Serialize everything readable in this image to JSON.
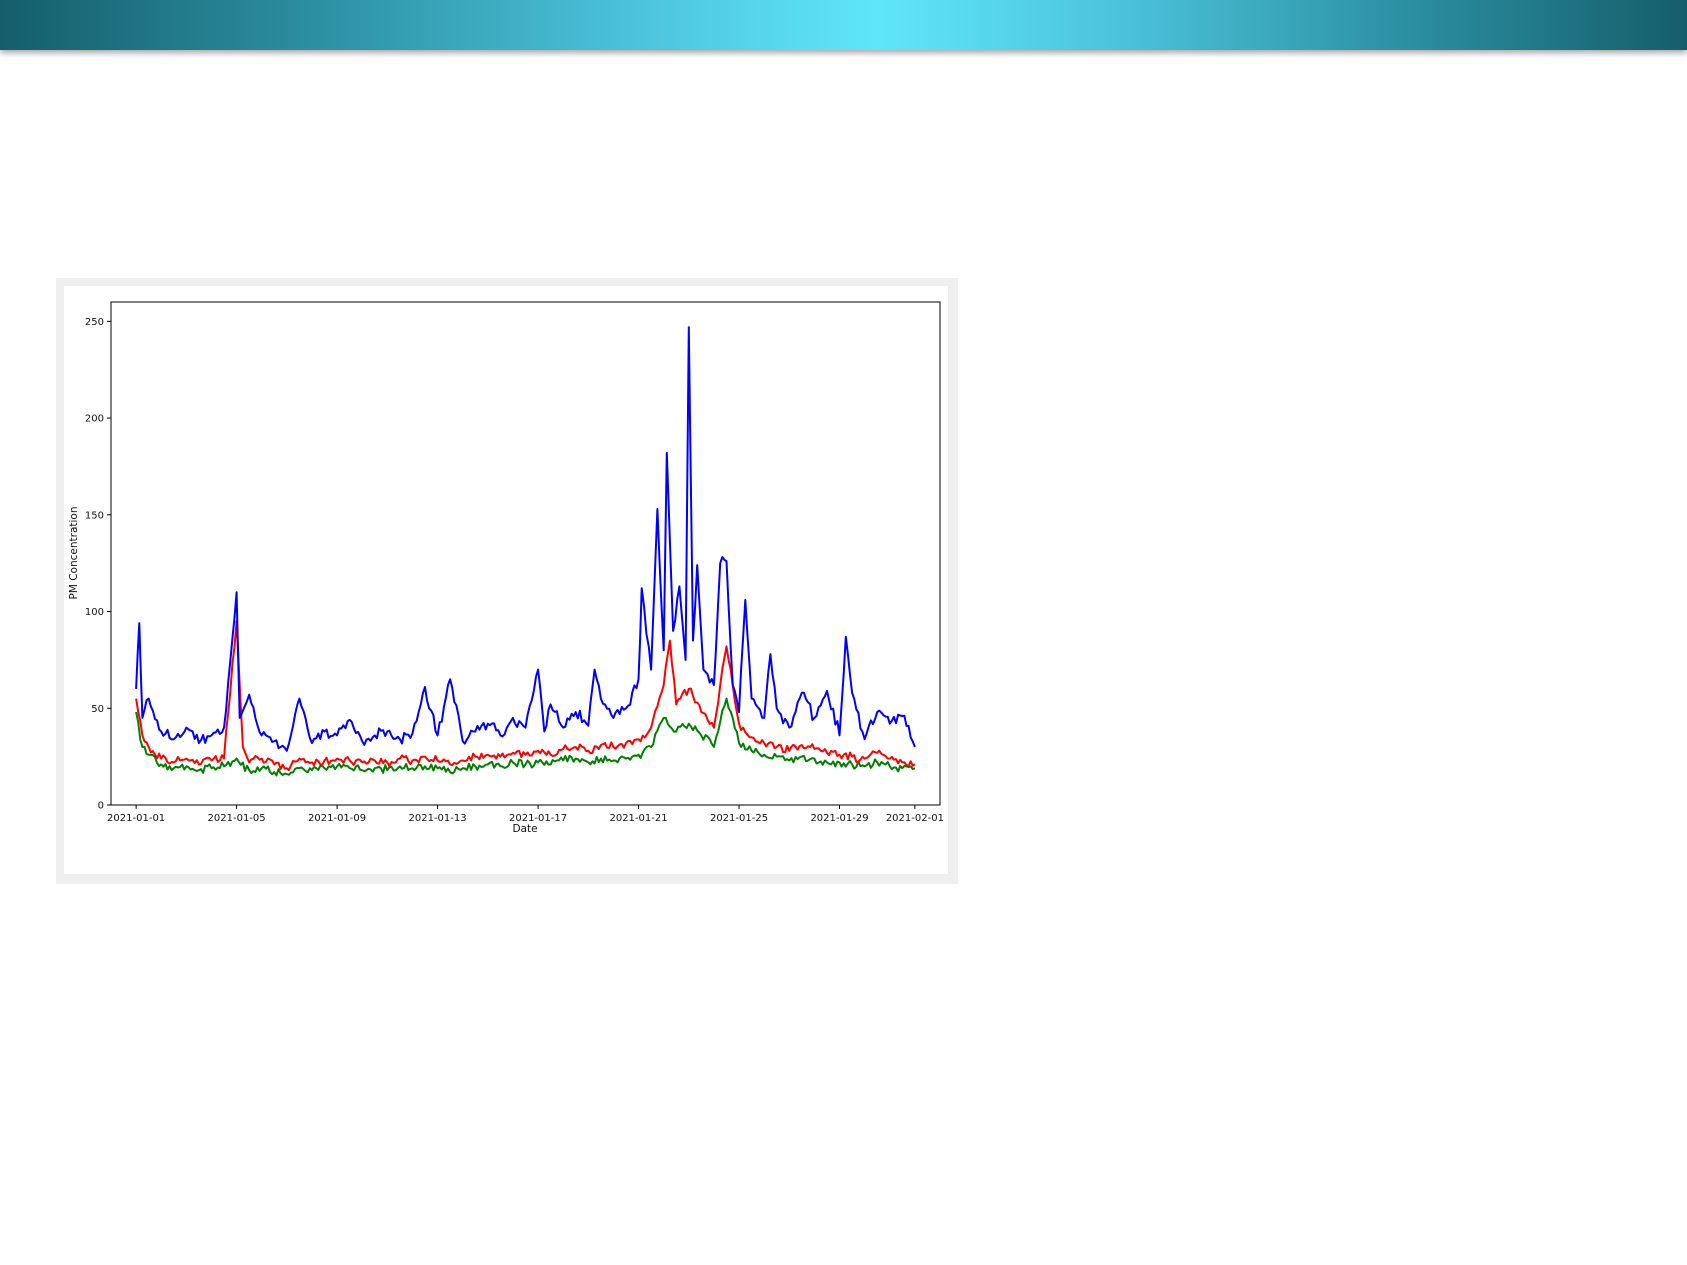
{
  "banner": {
    "colors": [
      "#155e6b",
      "#5fe6fb"
    ]
  },
  "chart_data": {
    "type": "line",
    "title": "",
    "xlabel": "Date",
    "ylabel": "PM Concentration",
    "x_range": [
      "2020-12-31T00:00",
      "2021-02-02T00:00"
    ],
    "ylim": [
      0,
      260
    ],
    "y_ticks": [
      0,
      50,
      100,
      150,
      200,
      250
    ],
    "x_ticks": [
      "2021-01-01",
      "2021-01-05",
      "2021-01-09",
      "2021-01-13",
      "2021-01-17",
      "2021-01-21",
      "2021-01-25",
      "2021-01-29",
      "2021-02-01"
    ],
    "grid": false,
    "legend": "none",
    "series": [
      {
        "color": "#008000",
        "points": [
          [
            "2021-01-01T00:00",
            48
          ],
          [
            "2021-01-01T06:00",
            30
          ],
          [
            "2021-01-01T12:00",
            26
          ],
          [
            "2021-01-02T00:00",
            21
          ],
          [
            "2021-01-02T12:00",
            19
          ],
          [
            "2021-01-03T00:00",
            20
          ],
          [
            "2021-01-03T12:00",
            18
          ],
          [
            "2021-01-04T00:00",
            19
          ],
          [
            "2021-01-04T12:00",
            20
          ],
          [
            "2021-01-05T00:00",
            24
          ],
          [
            "2021-01-05T12:00",
            18
          ],
          [
            "2021-01-06T00:00",
            19
          ],
          [
            "2021-01-06T12:00",
            17
          ],
          [
            "2021-01-07T00:00",
            16
          ],
          [
            "2021-01-07T12:00",
            19
          ],
          [
            "2021-01-08T00:00",
            18
          ],
          [
            "2021-01-08T12:00",
            19
          ],
          [
            "2021-01-09T00:00",
            20
          ],
          [
            "2021-01-09T12:00",
            19
          ],
          [
            "2021-01-10T00:00",
            18
          ],
          [
            "2021-01-10T12:00",
            19
          ],
          [
            "2021-01-11T00:00",
            18
          ],
          [
            "2021-01-11T12:00",
            20
          ],
          [
            "2021-01-12T00:00",
            19
          ],
          [
            "2021-01-12T12:00",
            20
          ],
          [
            "2021-01-13T00:00",
            19
          ],
          [
            "2021-01-13T12:00",
            17
          ],
          [
            "2021-01-14T00:00",
            19
          ],
          [
            "2021-01-14T12:00",
            20
          ],
          [
            "2021-01-15T00:00",
            21
          ],
          [
            "2021-01-15T12:00",
            20
          ],
          [
            "2021-01-16T00:00",
            22
          ],
          [
            "2021-01-16T12:00",
            21
          ],
          [
            "2021-01-17T00:00",
            22
          ],
          [
            "2021-01-17T12:00",
            21
          ],
          [
            "2021-01-18T00:00",
            23
          ],
          [
            "2021-01-18T12:00",
            24
          ],
          [
            "2021-01-19T00:00",
            22
          ],
          [
            "2021-01-19T12:00",
            24
          ],
          [
            "2021-01-20T00:00",
            23
          ],
          [
            "2021-01-20T12:00",
            24
          ],
          [
            "2021-01-21T00:00",
            26
          ],
          [
            "2021-01-21T12:00",
            30
          ],
          [
            "2021-01-22T00:00",
            45
          ],
          [
            "2021-01-22T12:00",
            38
          ],
          [
            "2021-01-23T00:00",
            42
          ],
          [
            "2021-01-23T12:00",
            36
          ],
          [
            "2021-01-24T00:00",
            30
          ],
          [
            "2021-01-24T12:00",
            55
          ],
          [
            "2021-01-25T00:00",
            32
          ],
          [
            "2021-01-25T12:00",
            28
          ],
          [
            "2021-01-26T00:00",
            26
          ],
          [
            "2021-01-26T12:00",
            25
          ],
          [
            "2021-01-27T00:00",
            23
          ],
          [
            "2021-01-27T12:00",
            25
          ],
          [
            "2021-01-28T00:00",
            24
          ],
          [
            "2021-01-28T12:00",
            22
          ],
          [
            "2021-01-29T00:00",
            22
          ],
          [
            "2021-01-29T12:00",
            21
          ],
          [
            "2021-01-30T00:00",
            20
          ],
          [
            "2021-01-30T12:00",
            22
          ],
          [
            "2021-01-31T00:00",
            20
          ],
          [
            "2021-01-31T12:00",
            19
          ],
          [
            "2021-02-01T00:00",
            19
          ]
        ]
      },
      {
        "color": "#ff0000",
        "points": [
          [
            "2021-01-01T00:00",
            55
          ],
          [
            "2021-01-01T06:00",
            36
          ],
          [
            "2021-01-01T12:00",
            30
          ],
          [
            "2021-01-02T00:00",
            24
          ],
          [
            "2021-01-02T12:00",
            22
          ],
          [
            "2021-01-03T00:00",
            24
          ],
          [
            "2021-01-03T12:00",
            21
          ],
          [
            "2021-01-04T00:00",
            23
          ],
          [
            "2021-01-04T12:00",
            24
          ],
          [
            "2021-01-05T00:00",
            95
          ],
          [
            "2021-01-05T06:00",
            30
          ],
          [
            "2021-01-05T12:00",
            22
          ],
          [
            "2021-01-06T00:00",
            24
          ],
          [
            "2021-01-06T12:00",
            21
          ],
          [
            "2021-01-07T00:00",
            19
          ],
          [
            "2021-01-07T12:00",
            24
          ],
          [
            "2021-01-08T00:00",
            22
          ],
          [
            "2021-01-08T12:00",
            23
          ],
          [
            "2021-01-09T00:00",
            24
          ],
          [
            "2021-01-09T12:00",
            23
          ],
          [
            "2021-01-10T00:00",
            22
          ],
          [
            "2021-01-10T12:00",
            23
          ],
          [
            "2021-01-11T00:00",
            22
          ],
          [
            "2021-01-11T12:00",
            24
          ],
          [
            "2021-01-12T00:00",
            23
          ],
          [
            "2021-01-12T12:00",
            25
          ],
          [
            "2021-01-13T00:00",
            23
          ],
          [
            "2021-01-13T12:00",
            21
          ],
          [
            "2021-01-14T00:00",
            23
          ],
          [
            "2021-01-14T12:00",
            25
          ],
          [
            "2021-01-15T00:00",
            26
          ],
          [
            "2021-01-15T12:00",
            25
          ],
          [
            "2021-01-16T00:00",
            27
          ],
          [
            "2021-01-16T12:00",
            26
          ],
          [
            "2021-01-17T00:00",
            28
          ],
          [
            "2021-01-17T12:00",
            26
          ],
          [
            "2021-01-18T00:00",
            29
          ],
          [
            "2021-01-18T12:00",
            30
          ],
          [
            "2021-01-19T00:00",
            28
          ],
          [
            "2021-01-19T12:00",
            31
          ],
          [
            "2021-01-20T00:00",
            30
          ],
          [
            "2021-01-20T12:00",
            32
          ],
          [
            "2021-01-21T00:00",
            34
          ],
          [
            "2021-01-21T12:00",
            40
          ],
          [
            "2021-01-22T00:00",
            62
          ],
          [
            "2021-01-22T06:00",
            85
          ],
          [
            "2021-01-22T12:00",
            52
          ],
          [
            "2021-01-23T00:00",
            60
          ],
          [
            "2021-01-23T12:00",
            48
          ],
          [
            "2021-01-24T00:00",
            40
          ],
          [
            "2021-01-24T12:00",
            82
          ],
          [
            "2021-01-25T00:00",
            42
          ],
          [
            "2021-01-25T12:00",
            35
          ],
          [
            "2021-01-26T00:00",
            32
          ],
          [
            "2021-01-26T12:00",
            30
          ],
          [
            "2021-01-27T00:00",
            28
          ],
          [
            "2021-01-27T12:00",
            31
          ],
          [
            "2021-01-28T00:00",
            29
          ],
          [
            "2021-01-28T12:00",
            27
          ],
          [
            "2021-01-29T00:00",
            26
          ],
          [
            "2021-01-29T12:00",
            25
          ],
          [
            "2021-01-30T00:00",
            24
          ],
          [
            "2021-01-30T12:00",
            27
          ],
          [
            "2021-01-31T00:00",
            24
          ],
          [
            "2021-01-31T12:00",
            22
          ],
          [
            "2021-02-01T00:00",
            21
          ]
        ]
      },
      {
        "color": "#0000ff",
        "points": [
          [
            "2021-01-01T00:00",
            60
          ],
          [
            "2021-01-01T03:00",
            94
          ],
          [
            "2021-01-01T06:00",
            45
          ],
          [
            "2021-01-01T12:00",
            55
          ],
          [
            "2021-01-02T00:00",
            38
          ],
          [
            "2021-01-02T12:00",
            34
          ],
          [
            "2021-01-03T00:00",
            40
          ],
          [
            "2021-01-03T12:00",
            32
          ],
          [
            "2021-01-04T00:00",
            36
          ],
          [
            "2021-01-04T12:00",
            40
          ],
          [
            "2021-01-05T00:00",
            110
          ],
          [
            "2021-01-05T03:00",
            45
          ],
          [
            "2021-01-05T12:00",
            57
          ],
          [
            "2021-01-06T00:00",
            36
          ],
          [
            "2021-01-06T12:00",
            33
          ],
          [
            "2021-01-07T00:00",
            28
          ],
          [
            "2021-01-07T12:00",
            55
          ],
          [
            "2021-01-08T00:00",
            32
          ],
          [
            "2021-01-08T12:00",
            38
          ],
          [
            "2021-01-09T00:00",
            36
          ],
          [
            "2021-01-09T12:00",
            44
          ],
          [
            "2021-01-10T00:00",
            33
          ],
          [
            "2021-01-10T12:00",
            36
          ],
          [
            "2021-01-11T00:00",
            38
          ],
          [
            "2021-01-11T12:00",
            34
          ],
          [
            "2021-01-12T00:00",
            37
          ],
          [
            "2021-01-12T12:00",
            61
          ],
          [
            "2021-01-13T00:00",
            36
          ],
          [
            "2021-01-13T12:00",
            65
          ],
          [
            "2021-01-14T00:00",
            33
          ],
          [
            "2021-01-14T12:00",
            38
          ],
          [
            "2021-01-15T00:00",
            42
          ],
          [
            "2021-01-15T12:00",
            36
          ],
          [
            "2021-01-16T00:00",
            45
          ],
          [
            "2021-01-16T12:00",
            40
          ],
          [
            "2021-01-17T00:00",
            70
          ],
          [
            "2021-01-17T06:00",
            38
          ],
          [
            "2021-01-17T12:00",
            52
          ],
          [
            "2021-01-18T00:00",
            40
          ],
          [
            "2021-01-18T12:00",
            48
          ],
          [
            "2021-01-19T00:00",
            41
          ],
          [
            "2021-01-19T06:00",
            70
          ],
          [
            "2021-01-19T12:00",
            55
          ],
          [
            "2021-01-20T00:00",
            45
          ],
          [
            "2021-01-20T12:00",
            50
          ],
          [
            "2021-01-21T00:00",
            65
          ],
          [
            "2021-01-21T03:00",
            112
          ],
          [
            "2021-01-21T12:00",
            70
          ],
          [
            "2021-01-21T18:00",
            153
          ],
          [
            "2021-01-22T00:00",
            80
          ],
          [
            "2021-01-22T03:00",
            182
          ],
          [
            "2021-01-22T09:00",
            90
          ],
          [
            "2021-01-22T15:00",
            113
          ],
          [
            "2021-01-22T21:00",
            75
          ],
          [
            "2021-01-23T00:00",
            247
          ],
          [
            "2021-01-23T04:00",
            85
          ],
          [
            "2021-01-23T08:00",
            124
          ],
          [
            "2021-01-23T14:00",
            70
          ],
          [
            "2021-01-24T00:00",
            62
          ],
          [
            "2021-01-24T06:00",
            125
          ],
          [
            "2021-01-24T12:00",
            126
          ],
          [
            "2021-01-24T18:00",
            62
          ],
          [
            "2021-01-25T00:00",
            48
          ],
          [
            "2021-01-25T06:00",
            106
          ],
          [
            "2021-01-25T12:00",
            55
          ],
          [
            "2021-01-26T00:00",
            45
          ],
          [
            "2021-01-26T06:00",
            78
          ],
          [
            "2021-01-26T12:00",
            50
          ],
          [
            "2021-01-27T00:00",
            40
          ],
          [
            "2021-01-27T12:00",
            58
          ],
          [
            "2021-01-28T00:00",
            45
          ],
          [
            "2021-01-28T12:00",
            59
          ],
          [
            "2021-01-29T00:00",
            36
          ],
          [
            "2021-01-29T06:00",
            87
          ],
          [
            "2021-01-29T12:00",
            58
          ],
          [
            "2021-01-30T00:00",
            34
          ],
          [
            "2021-01-30T12:00",
            48
          ],
          [
            "2021-01-31T00:00",
            42
          ],
          [
            "2021-01-31T12:00",
            46
          ],
          [
            "2021-02-01T00:00",
            30
          ]
        ]
      }
    ]
  }
}
